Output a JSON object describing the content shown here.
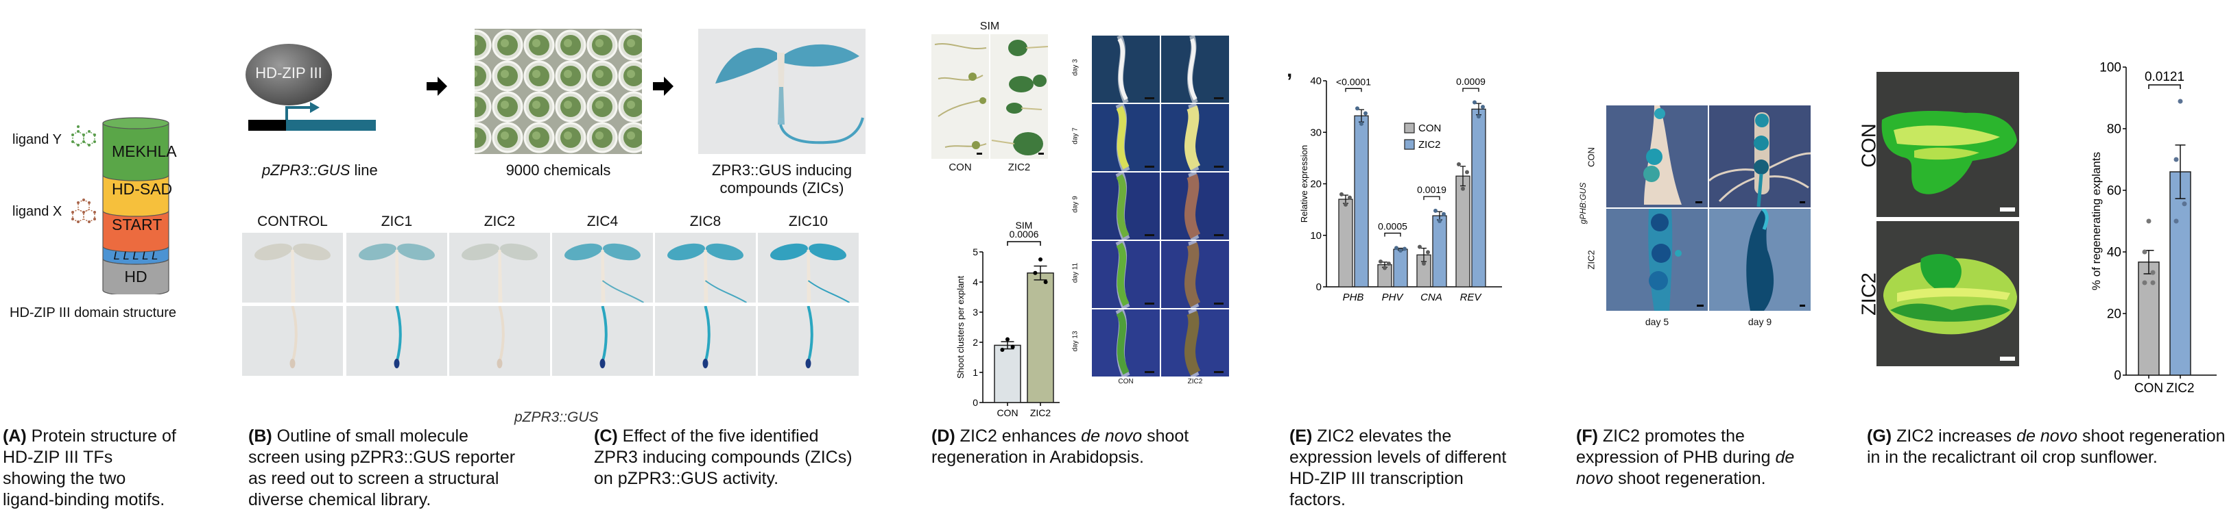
{
  "panel_a": {
    "domains": [
      "MEKHLA",
      "HD-SAD",
      "START",
      "L L L L L",
      "HD"
    ],
    "domain_colors": [
      "#5aa648",
      "#f6c03c",
      "#ec6b3f",
      "#4c93d3",
      "#9e9e9e"
    ],
    "ligand_y": "ligand Y",
    "ligand_x": "ligand X",
    "title": "HD-ZIP III domain structure",
    "caption_label": "(A)",
    "caption_lines": [
      "Protein structure of",
      "HD-ZIP III TFs",
      "showing the two",
      "ligand-binding motifs."
    ]
  },
  "panel_b": {
    "bubble": "HD-ZIP III",
    "line_label_italic": "pZPR3::GUS",
    "line_label_rest": " line",
    "chemicals": "9000 chemicals",
    "zic_label_1": "ZPR3::GUS inducing",
    "zic_label_2": "compounds (ZICs)",
    "caption_label": "(B)",
    "caption_lines": [
      "Outline of small molecule",
      "screen using pZPR3::GUS reporter",
      "as reed out to screen a structural",
      "diverse chemical library."
    ]
  },
  "panel_c": {
    "columns": [
      "CONTROL",
      "ZIC1",
      "ZIC2",
      "ZIC4",
      "ZIC8",
      "ZIC10"
    ],
    "bottom_label": "pZPR3::GUS",
    "caption_label": "(C)",
    "caption_lines": [
      "Effect of the five identified",
      "ZPR3 inducing compounds (ZICs)",
      "on pZPR3::GUS activity."
    ]
  },
  "panel_d": {
    "photo_title": "SIM",
    "photo_labels": [
      "CON",
      "ZIC2"
    ],
    "timecourse_days": [
      "day 3",
      "day 7",
      "day 9",
      "day 11",
      "day 13"
    ],
    "timecourse_cols": [
      "CON",
      "ZIC2"
    ],
    "caption_label": "(D)",
    "caption_pre": "ZIC2 enhances ",
    "caption_italic": "de novo",
    "caption_post": " shoot",
    "caption_line2": "regeneration in Arabidopsis."
  },
  "panel_e": {
    "caption_label": "(E)",
    "caption_lines": [
      "ZIC2 elevates the",
      "expression levels of different",
      "HD-ZIP III transcription",
      "factors."
    ],
    "panel_mark": ","
  },
  "panel_f": {
    "row_labels": [
      "CON",
      "ZIC2"
    ],
    "side_label": "gPHB:GUS",
    "col_labels": [
      "day 5",
      "day 9"
    ],
    "caption_label": "(F)",
    "caption_line1": "ZIC2 promotes the",
    "caption_line2_pre": "expression of PHB during ",
    "caption_line2_italic": "de",
    "caption_line3_italic": "novo",
    "caption_line3_post": " shoot regeneration."
  },
  "panel_g": {
    "row_labels": [
      "CON",
      "ZIC2"
    ],
    "caption_label": "(G)",
    "caption_pre": "ZIC2 increases ",
    "caption_italic": "de novo",
    "caption_post": " shoot regeneration",
    "caption_line2": "in in the recalictrant oil crop sunflower."
  },
  "colors": {
    "con_gray": "#b5b5b5",
    "zic2_blue": "#86a9d2",
    "sim_con": "#dde3e6",
    "sim_zic2": "#b7bd98",
    "reporter_teal": "#1f6d86"
  },
  "chart_data": [
    {
      "type": "bar",
      "title": "SIM",
      "categories": [
        "CON",
        "ZIC2"
      ],
      "values": [
        1.9,
        4.3
      ],
      "errors": [
        0.12,
        0.23
      ],
      "points": [
        [
          2.1,
          1.75,
          1.85
        ],
        [
          4.75,
          4.3,
          4.0
        ]
      ],
      "ylabel": "Shoot clusters per explant",
      "ylim": [
        0,
        5
      ],
      "yticks": [
        "0",
        "1",
        "2",
        "3",
        "4",
        "5"
      ],
      "annotation": "0.0006"
    },
    {
      "type": "bar",
      "title": "",
      "categories": [
        "PHB",
        "PHV",
        "CNA",
        "REV"
      ],
      "series": [
        {
          "name": "CON",
          "values": [
            17.0,
            4.3,
            6.2,
            21.5
          ],
          "errors": [
            0.8,
            0.5,
            1.3,
            1.9
          ]
        },
        {
          "name": "ZIC2",
          "values": [
            33.2,
            7.3,
            13.8,
            34.5
          ],
          "errors": [
            1.2,
            0.2,
            0.8,
            1.1
          ]
        }
      ],
      "ylabel": "Relative expression",
      "ylim": [
        0,
        40
      ],
      "yticks": [
        "0",
        "10",
        "20",
        "30",
        "40"
      ],
      "annotations": [
        "<0.0001",
        "0.0005",
        "0.0019",
        "0.0009"
      ],
      "legend": "top-center"
    },
    {
      "type": "bar",
      "title": "",
      "categories": [
        "CON",
        "ZIC2"
      ],
      "values": [
        36.7,
        66.0
      ],
      "errors": [
        3.8,
        8.7
      ],
      "points": [
        [
          50,
          40,
          33.3,
          30,
          30
        ],
        [
          88.9,
          70,
          55.6,
          50
        ]
      ],
      "ylabel": "% of regenerating explants",
      "ylim": [
        0,
        100
      ],
      "yticks": [
        "0",
        "20",
        "40",
        "60",
        "80",
        "100"
      ],
      "annotation": "0.0121"
    }
  ]
}
